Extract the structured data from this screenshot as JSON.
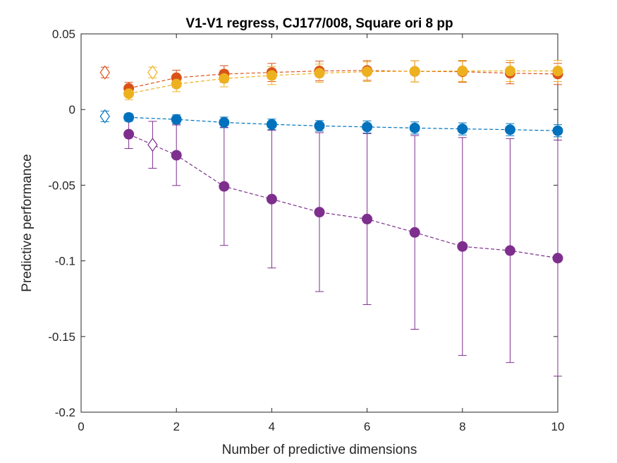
{
  "chart_data": {
    "type": "scatter",
    "title": "V1-V1 regress, CJ177/008, Square ori 8 pp",
    "xlabel": "Number of predictive dimensions",
    "ylabel": "Predictive performance",
    "xlim": [
      0,
      10
    ],
    "ylim": [
      -0.2,
      0.05
    ],
    "x_ticks": [
      0,
      2,
      4,
      6,
      8,
      10
    ],
    "x_tick_labels": [
      "0",
      "2",
      "4",
      "6",
      "8",
      "10"
    ],
    "y_ticks": [
      0.05,
      0,
      -0.05,
      -0.1,
      -0.15,
      -0.2
    ],
    "y_tick_labels": [
      "0.05",
      "0",
      "-0.05",
      "-0.1",
      "-0.15",
      "-0.2"
    ],
    "grid": false,
    "legend": "none",
    "series": [
      {
        "color": "#D95319",
        "x": [
          1,
          2,
          3,
          4,
          5,
          6,
          7,
          8,
          9,
          10
        ],
        "y": [
          0.014,
          0.021,
          0.0235,
          0.0245,
          0.0255,
          0.0258,
          0.0252,
          0.025,
          0.024,
          0.0235
        ],
        "err": [
          0.004,
          0.005,
          0.0055,
          0.006,
          0.0065,
          0.0065,
          0.007,
          0.007,
          0.007,
          0.007
        ],
        "diamond": {
          "x": 0.5,
          "y": 0.0245,
          "err": 0.0035
        }
      },
      {
        "color": "#EDB120",
        "x": [
          1,
          2,
          3,
          4,
          5,
          6,
          7,
          8,
          9,
          10
        ],
        "y": [
          0.0105,
          0.0168,
          0.0205,
          0.0225,
          0.024,
          0.025,
          0.0253,
          0.0255,
          0.0255,
          0.0255
        ],
        "err": [
          0.004,
          0.005,
          0.0055,
          0.006,
          0.006,
          0.0065,
          0.007,
          0.007,
          0.007,
          0.007
        ],
        "diamond": {
          "x": 1.5,
          "y": 0.0245,
          "err": 0.0035
        }
      },
      {
        "color": "#0072BD",
        "x": [
          1,
          2,
          3,
          4,
          5,
          6,
          7,
          8,
          9,
          10
        ],
        "y": [
          -0.0052,
          -0.0065,
          -0.0085,
          -0.0098,
          -0.0108,
          -0.0115,
          -0.0122,
          -0.0128,
          -0.0133,
          -0.014
        ],
        "err": [
          0.0025,
          0.003,
          0.0035,
          0.0035,
          0.0035,
          0.004,
          0.004,
          0.004,
          0.004,
          0.004
        ],
        "diamond": {
          "x": 0.5,
          "y": -0.0045,
          "err": 0.0035
        }
      },
      {
        "color": "#7E2F8E",
        "x": [
          1,
          2,
          3,
          4,
          5,
          6,
          7,
          8,
          9,
          10
        ],
        "y": [
          -0.0163,
          -0.0302,
          -0.0508,
          -0.0592,
          -0.0678,
          -0.0724,
          -0.0812,
          -0.0905,
          -0.0932,
          -0.0982
        ],
        "err": [
          0.0095,
          0.02,
          0.039,
          0.0455,
          0.0525,
          0.0565,
          0.064,
          0.072,
          0.074,
          0.078
        ],
        "diamond": {
          "x": 1.5,
          "y": -0.0233,
          "err": 0.0155
        }
      }
    ]
  }
}
